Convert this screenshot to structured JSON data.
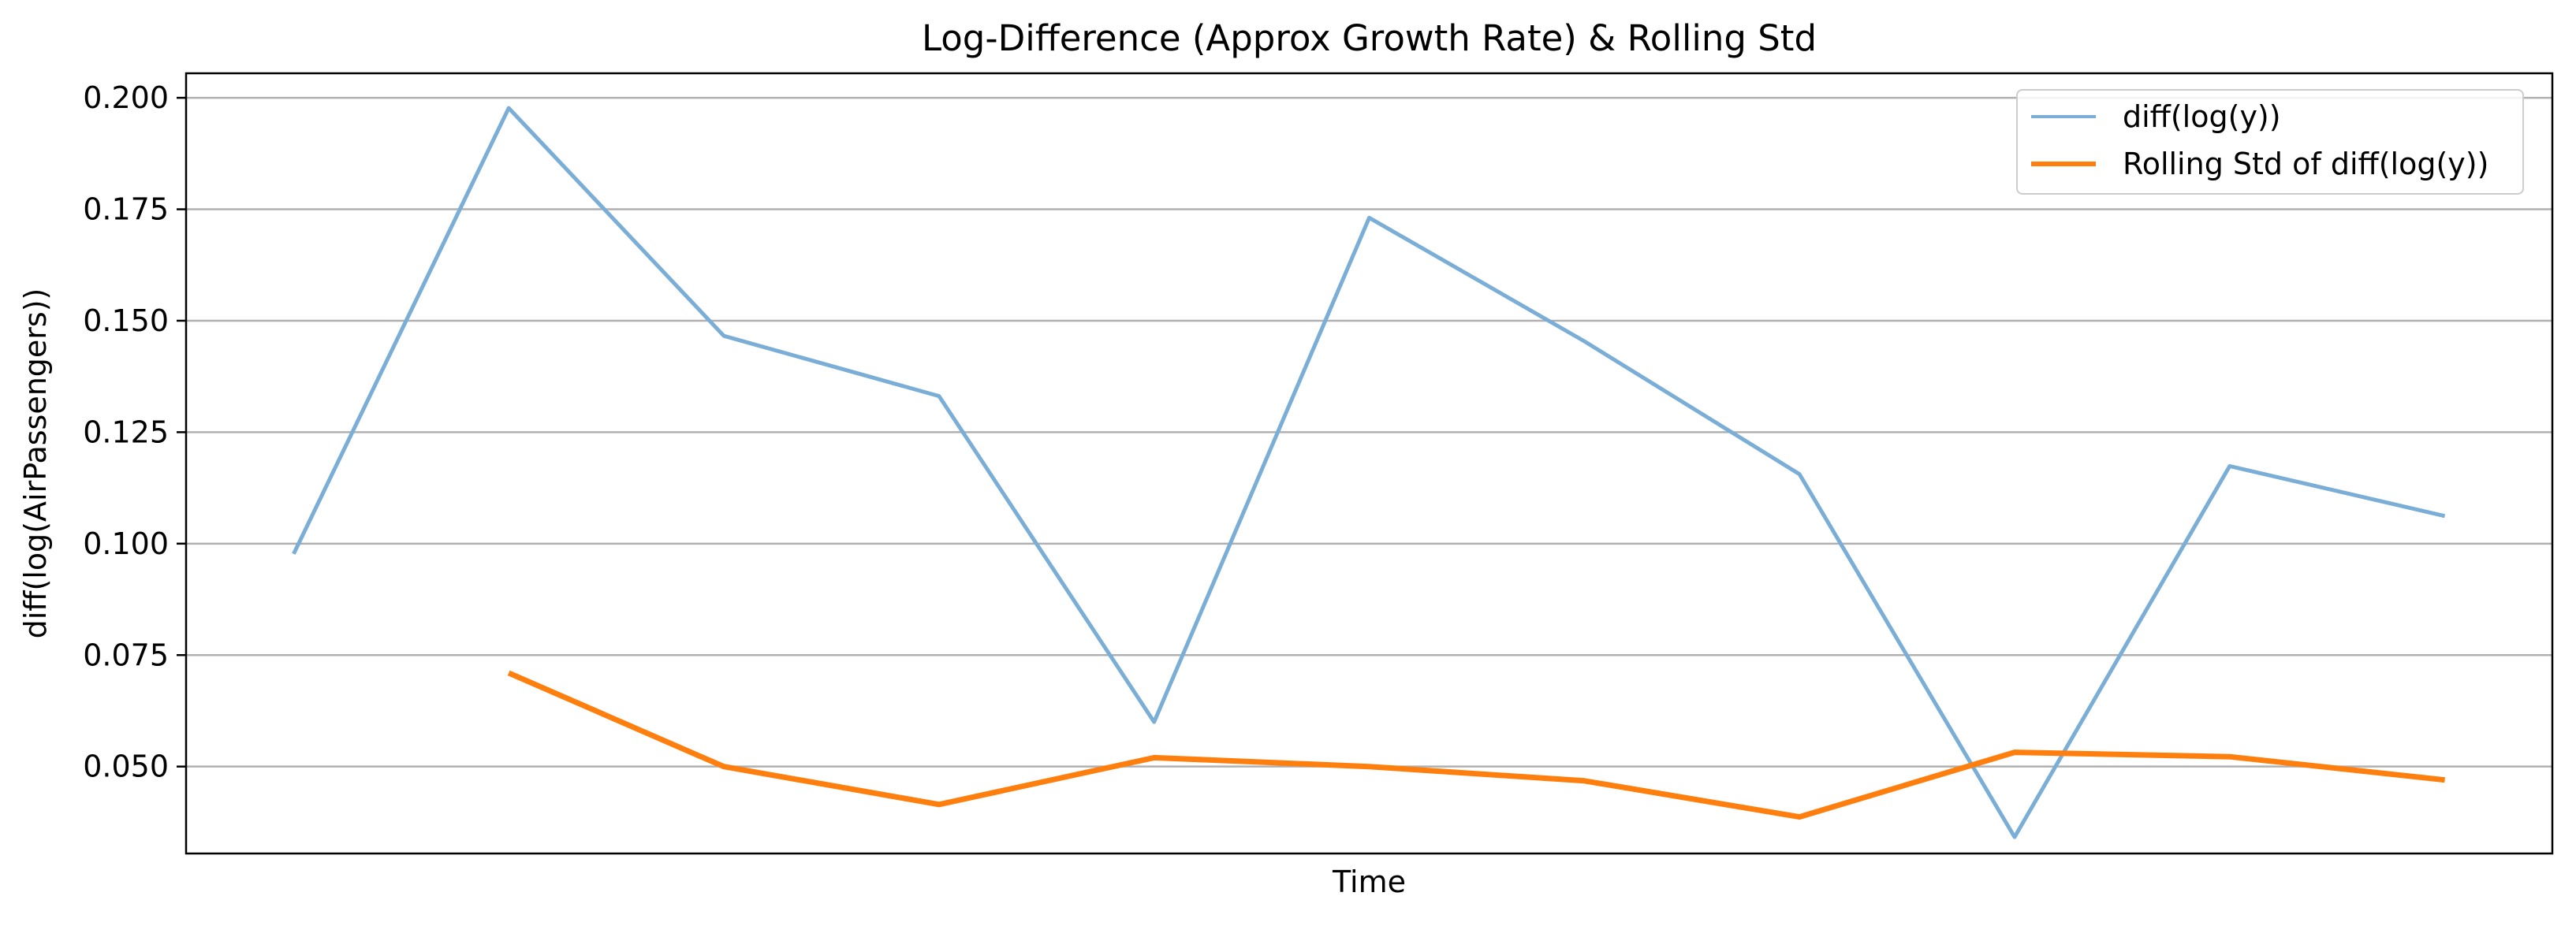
{
  "chart_data": {
    "type": "line",
    "title": "Log-Difference (Approx Growth Rate) & Rolling Std",
    "xlabel": "Time",
    "ylabel": "diff(log(AirPassengers))",
    "xlim": [
      0.5,
      11.5
    ],
    "ylim": [
      0.0305,
      0.2055
    ],
    "yticks": [
      0.05,
      0.075,
      0.1,
      0.125,
      0.15,
      0.175,
      0.2
    ],
    "ytick_labels": [
      "0.050",
      "0.075",
      "0.100",
      "0.125",
      "0.150",
      "0.175",
      "0.200"
    ],
    "grid": {
      "y": true,
      "x": false
    },
    "legend_position": "top-right",
    "series": [
      {
        "name": "diff(log(y))",
        "color": "#7aaed6",
        "x": [
          1,
          2,
          3,
          4,
          5,
          6,
          7,
          8,
          9,
          10,
          11
        ],
        "values": [
          0.0977,
          0.1977,
          0.1466,
          0.1331,
          0.06,
          0.1731,
          0.1454,
          0.1156,
          0.0342,
          0.1174,
          0.1062
        ]
      },
      {
        "name": "Rolling Std of diff(log(y))",
        "color": "#ff7f0e",
        "x": [
          2,
          3,
          4,
          5,
          6,
          7,
          8,
          9,
          10,
          11
        ],
        "values": [
          0.071,
          0.05,
          0.0415,
          0.052,
          0.05,
          0.0468,
          0.0387,
          0.0532,
          0.0522,
          0.047
        ]
      }
    ]
  }
}
